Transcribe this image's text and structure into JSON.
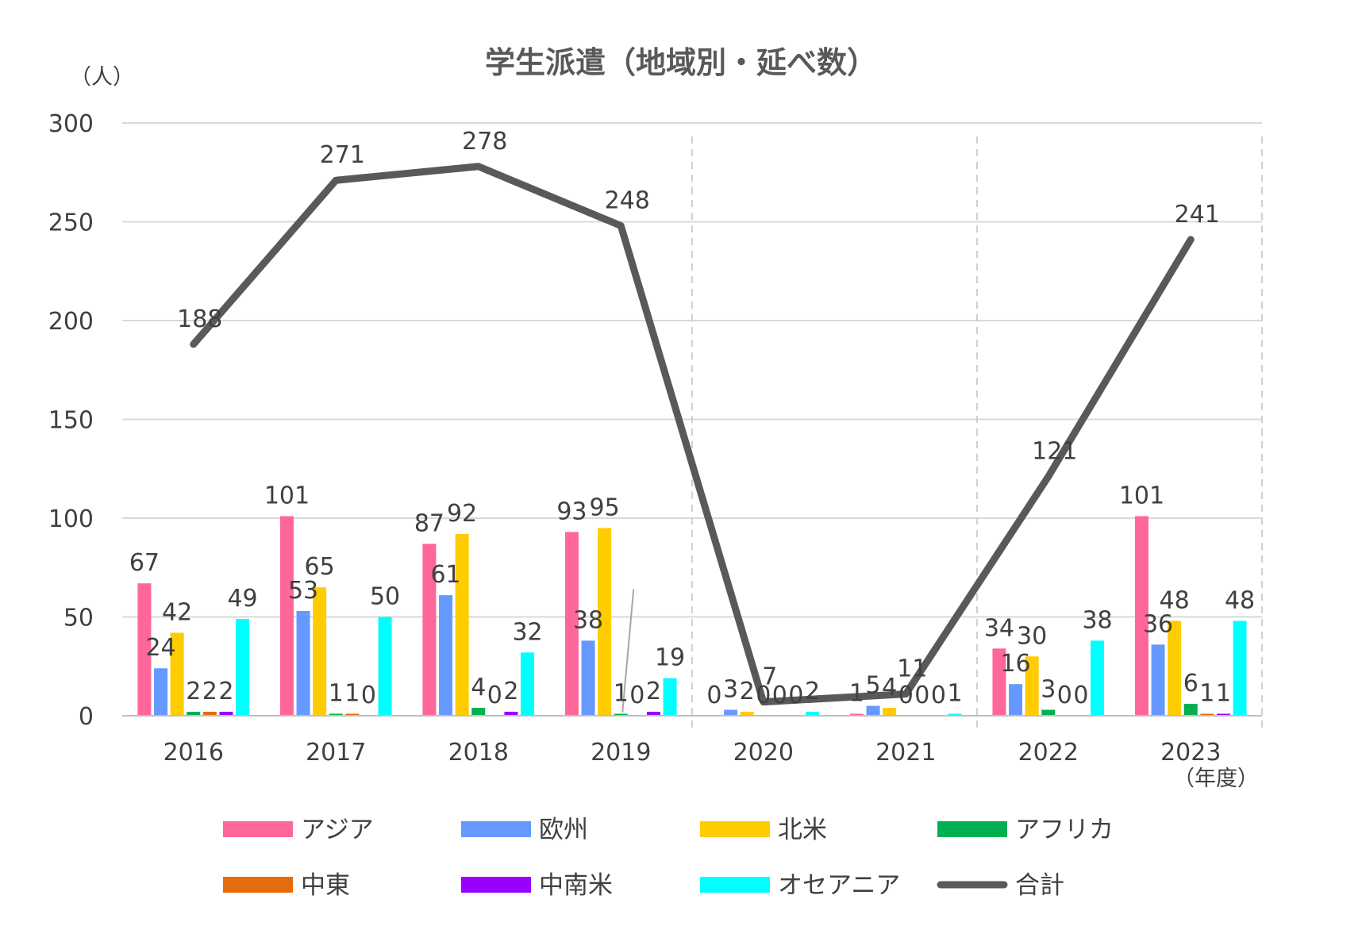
{
  "chart_data": {
    "type": "bar",
    "title": "学生派遣（地域別・延べ数）",
    "y_unit_label": "（人）",
    "x_unit_label": "（年度）",
    "ylim": [
      0,
      300
    ],
    "y_ticks": [
      0,
      50,
      100,
      150,
      200,
      250,
      300
    ],
    "grid": true,
    "legend_position": "bottom",
    "categories": [
      "2016",
      "2017",
      "2018",
      "2019",
      "2020",
      "2021",
      "2022",
      "2023"
    ],
    "series": [
      {
        "name": "アジア",
        "type": "bar",
        "color": "#FF6699",
        "values": [
          67,
          101,
          87,
          93,
          0,
          1,
          34,
          101
        ]
      },
      {
        "name": "欧州",
        "type": "bar",
        "color": "#6699FF",
        "values": [
          24,
          53,
          61,
          38,
          3,
          5,
          16,
          36
        ]
      },
      {
        "name": "北米",
        "type": "bar",
        "color": "#FFCC00",
        "values": [
          42,
          65,
          92,
          95,
          2,
          4,
          30,
          48
        ]
      },
      {
        "name": "アフリカ",
        "type": "bar",
        "color": "#00B050",
        "values": [
          2,
          1,
          4,
          1,
          0,
          0,
          3,
          6
        ]
      },
      {
        "name": "中東",
        "type": "bar",
        "color": "#E46C0A",
        "values": [
          2,
          1,
          0,
          0,
          0,
          0,
          0,
          1
        ]
      },
      {
        "name": "中南米",
        "type": "bar",
        "color": "#9900FF",
        "values": [
          2,
          0,
          2,
          2,
          0,
          0,
          0,
          1
        ]
      },
      {
        "name": "オセアニア",
        "type": "bar",
        "color": "#00FFFF",
        "values": [
          49,
          50,
          32,
          19,
          2,
          1,
          38,
          48
        ]
      },
      {
        "name": "合計",
        "type": "line",
        "color": "#595959",
        "values": [
          188,
          271,
          278,
          248,
          7,
          11,
          121,
          241
        ]
      }
    ]
  }
}
